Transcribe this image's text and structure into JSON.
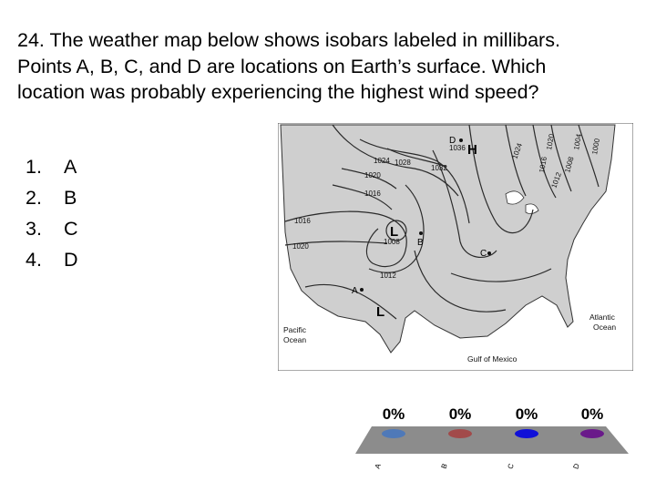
{
  "question": {
    "line1": "24. The weather map below shows isobars labeled in millibars.",
    "line2": "Points A, B, C, and D are locations on Earth’s surface. Which",
    "line3": "location was probably experiencing the highest wind speed?"
  },
  "choices": [
    {
      "num": "1.",
      "label": "A"
    },
    {
      "num": "2.",
      "label": "B"
    },
    {
      "num": "3.",
      "label": "C"
    },
    {
      "num": "4.",
      "label": "D"
    }
  ],
  "map": {
    "points": {
      "a": "A",
      "b": "B",
      "c": "C",
      "d": "D"
    },
    "pressure_systems": {
      "high": "H",
      "low_center": "L",
      "low_southwest": "L"
    },
    "isobar_labels": [
      "1036",
      "1032",
      "1028",
      "1024",
      "1020",
      "1016",
      "1008",
      "1012",
      "1016",
      "1020",
      "1012",
      "1008",
      "1004",
      "1000",
      "1016",
      "1020",
      "1024"
    ],
    "water_labels": {
      "pacific_line1": "Pacific",
      "pacific_line2": "Ocean",
      "atlantic_line1": "Atlantic",
      "atlantic_line2": "Ocean",
      "gulf": "Gulf of Mexico"
    },
    "colors": {
      "land": "#cfcfcf",
      "water": "#ffffff",
      "isobar": "#2a2a2a"
    }
  },
  "poll": {
    "bars": [
      {
        "label": "A",
        "percent": "0%",
        "color": "#4f79b8"
      },
      {
        "label": "B",
        "percent": "0%",
        "color": "#a24a4a"
      },
      {
        "label": "C",
        "percent": "0%",
        "color": "#1010d8"
      },
      {
        "label": "D",
        "percent": "0%",
        "color": "#6a1a8a"
      }
    ],
    "base_color": "#8c8c8c"
  }
}
